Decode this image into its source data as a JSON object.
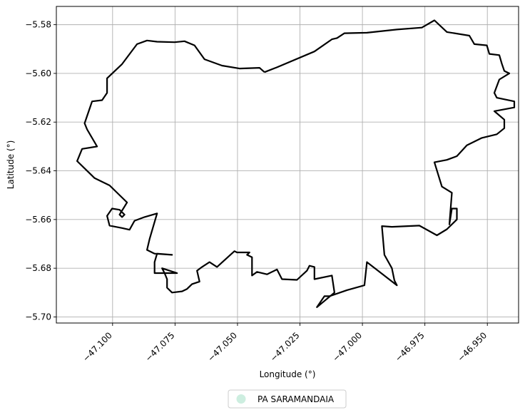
{
  "chart_data": {
    "type": "map",
    "xlabel": "Longitude (°)",
    "ylabel": "Latitude (°)",
    "xlim": [
      -47.1225,
      -46.9375
    ],
    "ylim": [
      -5.7025,
      -5.5725
    ],
    "x_ticks": [
      -47.1,
      -47.075,
      -47.05,
      -47.025,
      -47.0,
      -46.975,
      -46.95
    ],
    "x_tick_labels": [
      "−47.100",
      "−47.075",
      "−47.050",
      "−47.025",
      "−47.000",
      "−46.975",
      "−46.950"
    ],
    "y_ticks": [
      -5.58,
      -5.6,
      -5.62,
      -5.64,
      -5.66,
      -5.68,
      -5.7
    ],
    "y_tick_labels": [
      "−5.58",
      "−5.60",
      "−5.62",
      "−5.64",
      "−5.66",
      "−5.68",
      "−5.70"
    ],
    "grid": true,
    "legend": {
      "placement": "bottom-center",
      "entries": [
        {
          "label": "PA SARAMANDAIA",
          "color": "#cdeee0"
        }
      ]
    },
    "boundary_color": "#000000",
    "boundary": [
      [
        -47.0392,
        -5.5995
      ],
      [
        -47.0342,
        -5.5975
      ],
      [
        -47.0192,
        -5.591
      ],
      [
        -47.0122,
        -5.586
      ],
      [
        -47.0102,
        -5.5855
      ],
      [
        -47.0072,
        -5.5835
      ],
      [
        -46.9982,
        -5.5833
      ],
      [
        -46.9862,
        -5.582
      ],
      [
        -46.9762,
        -5.5812
      ],
      [
        -46.9712,
        -5.5782
      ],
      [
        -46.9662,
        -5.583
      ],
      [
        -46.9572,
        -5.5845
      ],
      [
        -46.9552,
        -5.588
      ],
      [
        -46.9502,
        -5.5885
      ],
      [
        -46.9492,
        -5.592
      ],
      [
        -46.9452,
        -5.5925
      ],
      [
        -46.9442,
        -5.596
      ],
      [
        -46.9432,
        -5.599
      ],
      [
        -46.9412,
        -5.6
      ],
      [
        -46.9452,
        -5.6025
      ],
      [
        -46.9472,
        -5.608
      ],
      [
        -46.9462,
        -5.61
      ],
      [
        -46.9392,
        -5.6115
      ],
      [
        -46.9392,
        -5.614
      ],
      [
        -46.9472,
        -5.6155
      ],
      [
        -46.9432,
        -5.619
      ],
      [
        -46.9432,
        -5.6225
      ],
      [
        -46.9462,
        -5.625
      ],
      [
        -46.9522,
        -5.6265
      ],
      [
        -46.9582,
        -5.6295
      ],
      [
        -46.9622,
        -5.634
      ],
      [
        -46.9662,
        -5.6355
      ],
      [
        -46.9712,
        -5.6365
      ],
      [
        -46.9682,
        -5.6465
      ],
      [
        -46.9642,
        -5.649
      ],
      [
        -46.9652,
        -5.662
      ],
      [
        -46.9642,
        -5.6555
      ],
      [
        -46.9622,
        -5.6555
      ],
      [
        -46.9622,
        -5.66
      ],
      [
        -46.9662,
        -5.664
      ],
      [
        -46.9702,
        -5.6665
      ],
      [
        -46.9772,
        -5.6625
      ],
      [
        -46.9882,
        -5.663
      ],
      [
        -46.9922,
        -5.6627
      ],
      [
        -46.9912,
        -5.6745
      ],
      [
        -46.9882,
        -5.68
      ],
      [
        -46.9872,
        -5.685
      ],
      [
        -46.9862,
        -5.687
      ],
      [
        -46.9982,
        -5.6775
      ],
      [
        -46.9992,
        -5.687
      ],
      [
        -47.0062,
        -5.689
      ],
      [
        -47.0132,
        -5.6915
      ],
      [
        -47.0152,
        -5.6915
      ],
      [
        -47.0182,
        -5.696
      ],
      [
        -47.0112,
        -5.69
      ],
      [
        -47.0122,
        -5.683
      ],
      [
        -47.0192,
        -5.6845
      ],
      [
        -47.0192,
        -5.6795
      ],
      [
        -47.0212,
        -5.679
      ],
      [
        -47.0222,
        -5.681
      ],
      [
        -47.0262,
        -5.6848
      ],
      [
        -47.0322,
        -5.6845
      ],
      [
        -47.0342,
        -5.6805
      ],
      [
        -47.0382,
        -5.6825
      ],
      [
        -47.0422,
        -5.6815
      ],
      [
        -47.0442,
        -5.683
      ],
      [
        -47.0442,
        -5.6755
      ],
      [
        -47.0462,
        -5.6745
      ],
      [
        -47.0452,
        -5.6735
      ],
      [
        -47.0502,
        -5.6735
      ],
      [
        -47.0512,
        -5.673
      ],
      [
        -47.0582,
        -5.6795
      ],
      [
        -47.0612,
        -5.6775
      ],
      [
        -47.0642,
        -5.6795
      ],
      [
        -47.0662,
        -5.681
      ],
      [
        -47.0652,
        -5.6855
      ],
      [
        -47.0682,
        -5.6865
      ],
      [
        -47.0702,
        -5.6885
      ],
      [
        -47.0722,
        -5.6895
      ],
      [
        -47.0762,
        -5.69
      ],
      [
        -47.0782,
        -5.688
      ],
      [
        -47.0782,
        -5.6845
      ],
      [
        -47.0792,
        -5.682
      ],
      [
        -47.0802,
        -5.68
      ],
      [
        -47.0742,
        -5.682
      ],
      [
        -47.0832,
        -5.682
      ],
      [
        -47.0832,
        -5.6775
      ],
      [
        -47.0822,
        -5.674
      ],
      [
        -47.0762,
        -5.6745
      ],
      [
        -47.0832,
        -5.674
      ],
      [
        -47.0862,
        -5.6725
      ],
      [
        -47.0852,
        -5.668
      ],
      [
        -47.0822,
        -5.6575
      ],
      [
        -47.0872,
        -5.659
      ],
      [
        -47.0912,
        -5.6605
      ],
      [
        -47.0932,
        -5.6642
      ],
      [
        -47.0962,
        -5.6635
      ],
      [
        -47.1012,
        -5.6625
      ],
      [
        -47.1022,
        -5.6585
      ],
      [
        -47.1002,
        -5.6555
      ],
      [
        -47.0972,
        -5.656
      ],
      [
        -47.0952,
        -5.658
      ],
      [
        -47.0962,
        -5.659
      ],
      [
        -47.0972,
        -5.658
      ],
      [
        -47.0942,
        -5.653
      ],
      [
        -47.1012,
        -5.646
      ],
      [
        -47.1072,
        -5.643
      ],
      [
        -47.1142,
        -5.636
      ],
      [
        -47.1122,
        -5.631
      ],
      [
        -47.1062,
        -5.63
      ],
      [
        -47.1102,
        -5.623
      ],
      [
        -47.1112,
        -5.6205
      ],
      [
        -47.1082,
        -5.6115
      ],
      [
        -47.1042,
        -5.611
      ],
      [
        -47.1022,
        -5.608
      ],
      [
        -47.1022,
        -5.602
      ],
      [
        -47.0962,
        -5.5962
      ],
      [
        -47.0902,
        -5.588
      ],
      [
        -47.0862,
        -5.5865
      ],
      [
        -47.0822,
        -5.587
      ],
      [
        -47.0752,
        -5.5872
      ],
      [
        -47.0712,
        -5.5868
      ],
      [
        -47.0672,
        -5.5885
      ],
      [
        -47.0632,
        -5.5942
      ],
      [
        -47.0562,
        -5.5968
      ],
      [
        -47.0492,
        -5.598
      ],
      [
        -47.0412,
        -5.5977
      ],
      [
        -47.0392,
        -5.5995
      ]
    ]
  }
}
